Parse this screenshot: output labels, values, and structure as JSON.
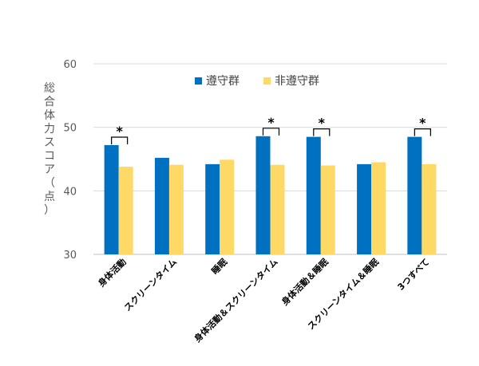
{
  "chart_data": {
    "type": "bar",
    "ylabel": "総合体力スコア（点）",
    "ylim": [
      30,
      60
    ],
    "yticks": [
      30,
      40,
      50,
      60
    ],
    "categories": [
      "身体活動",
      "スクリーンタイム",
      "睡眠",
      "身体活動＆スクリーンタイム",
      "身体活動＆睡眠",
      "スクリーンタイム＆睡眠",
      "3つすべて"
    ],
    "series": [
      {
        "name": "遵守群",
        "values": [
          47.2,
          45.2,
          44.2,
          48.6,
          48.5,
          44.2,
          48.5
        ]
      },
      {
        "name": "非遵守群",
        "values": [
          43.8,
          44.1,
          44.9,
          44.1,
          44.0,
          44.5,
          44.2
        ]
      }
    ],
    "significance": [
      "*",
      "",
      "",
      "*",
      "*",
      "",
      "*"
    ],
    "legend_position": "top",
    "grid": true
  },
  "colors": {
    "series": [
      "#0070C0",
      "#FFD966"
    ],
    "grid": "#d9d9d9",
    "axis": "#bfbfbf"
  }
}
